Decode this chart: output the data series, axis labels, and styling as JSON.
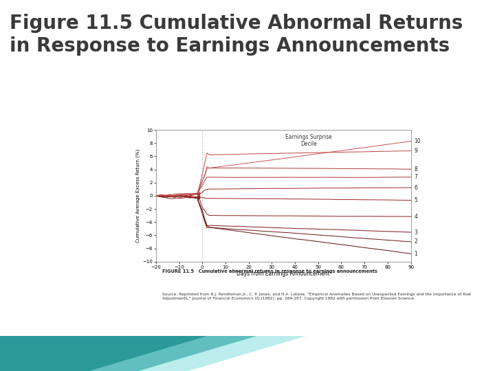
{
  "title_line1": "Figure 11.5 Cumulative Abnormal Returns",
  "title_line2": "in Response to Earnings Announcements",
  "title_color": "#3a3a3a",
  "title_fontsize": 20,
  "bg_color": "#ffffff",
  "chart_bg": "#ffffff",
  "caption_bg": "#f0c8c8",
  "caption_title": "FIGURE 11.5   Cumulative abnormal returns in response to earnings announcements",
  "caption_source": "Source: Reprinted from R.J. Rendleman Jr., C. P. Jones, and H.A. Latane, \"Empirical Anomalies Based on Unexpected Earnings and the Importance of Risk Adjustments,\" Journal of Financial Economics 10 (1982): pp. 269-287. Copyright 1982 with permission from Elsevier Science.",
  "xlabel": "Days from Earnings Announcement",
  "ylabel": "Cumulative Average Excess Return (%)",
  "xlim": [
    -20,
    90
  ],
  "ylim": [
    -10,
    10
  ],
  "xticks": [
    -20,
    -10,
    0,
    10,
    20,
    30,
    40,
    50,
    60,
    70,
    80,
    90
  ],
  "yticks": [
    -10,
    -8,
    -6,
    -4,
    -2,
    0,
    2,
    4,
    6,
    8,
    10
  ],
  "vline_x": 0,
  "legend_title": "Earnings Surprise\nDecile",
  "deciles": [
    1,
    2,
    3,
    4,
    5,
    6,
    7,
    8,
    9,
    10
  ],
  "final_values": [
    -8.8,
    -7.0,
    -5.5,
    -3.2,
    -0.7,
    1.2,
    2.8,
    4.1,
    6.8,
    8.2
  ],
  "jump_values": [
    -4.8,
    -4.8,
    -4.5,
    -3.0,
    -0.4,
    1.0,
    2.8,
    4.2,
    6.2,
    4.2
  ],
  "teal_color": "#2bb5b5",
  "teal_dark": "#1a8888",
  "teal_darker": "#0d5555"
}
